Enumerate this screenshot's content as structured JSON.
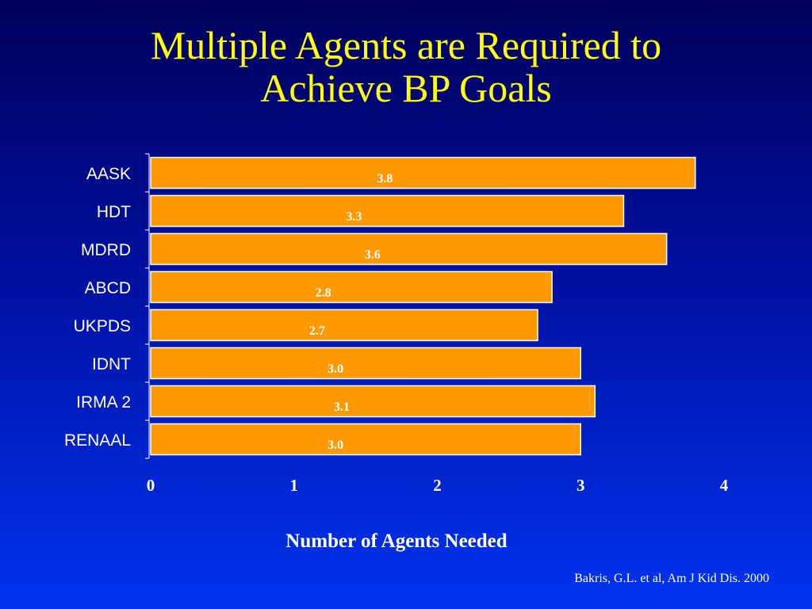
{
  "slide": {
    "title_line1": "Multiple Agents are Required to",
    "title_line2": "Achieve BP Goals",
    "citation": "Bakris, G.L. et al, Am J Kid Dis.  2000"
  },
  "colors": {
    "bar_fill": "#ff9900",
    "bar_border": "#ffffff",
    "title": "#ffff00",
    "label_text": "#ffffff",
    "data_label_text": "#ffffff"
  },
  "chart_data": {
    "type": "bar",
    "orientation": "horizontal",
    "title": "",
    "xlabel": "Number of Agents Needed",
    "ylabel": "",
    "xlim": [
      0,
      4
    ],
    "xticks": [
      "0",
      "1",
      "2",
      "3",
      "4"
    ],
    "grid": false,
    "categories": [
      "AASK",
      "HDT",
      "MDRD",
      "ABCD",
      "UKPDS",
      "IDNT",
      "IRMA 2",
      "RENAAL"
    ],
    "values": [
      3.8,
      3.3,
      3.6,
      2.8,
      2.7,
      3.0,
      3.1,
      3.0
    ],
    "data_labels": [
      "3.8",
      "3.3",
      "3.6",
      "2.8",
      "2.7",
      "3.0",
      "3.1",
      "3.0"
    ]
  }
}
